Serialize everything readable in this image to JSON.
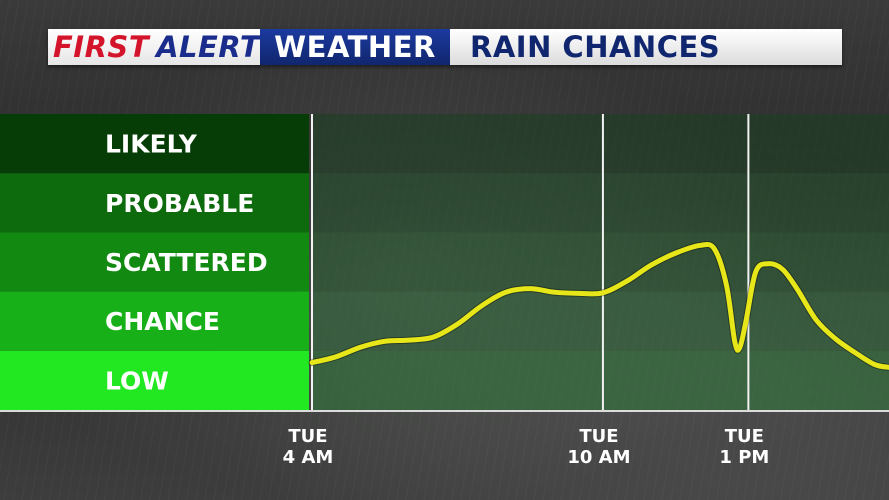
{
  "banner": {
    "brand_first": "FIRST",
    "brand_alert": "ALERT",
    "brand_weather": "WEATHER",
    "title": "RAIN CHANCES"
  },
  "colors": {
    "curve": "#e6e619",
    "brand_red": "#d4142a",
    "brand_blue": "#1a2d8c"
  },
  "chart_data": {
    "type": "line",
    "title": "RAIN CHANCES",
    "y_categories": [
      {
        "label": "LOW",
        "band_color": "#22e822",
        "plot_color": "#2f7a3a"
      },
      {
        "label": "CHANCE",
        "band_color": "#18b018",
        "plot_color": "#2f6b3a"
      },
      {
        "label": "SCATTERED",
        "band_color": "#128a12",
        "plot_color": "#275c30"
      },
      {
        "label": "PROBABLE",
        "band_color": "#0d6a0d",
        "plot_color": "#21502a"
      },
      {
        "label": "LIKELY",
        "band_color": "#063d06",
        "plot_color": "#1b4020"
      }
    ],
    "ylim": [
      0,
      5
    ],
    "xlim": [
      4,
      15.9
    ],
    "x_ticks": [
      {
        "x": 4,
        "day": "TUE",
        "time": "4 AM"
      },
      {
        "x": 10,
        "day": "TUE",
        "time": "10 AM"
      },
      {
        "x": 13,
        "day": "TUE",
        "time": "1 PM"
      }
    ],
    "grid": "vertical",
    "series": [
      {
        "points": [
          [
            4.0,
            0.8
          ],
          [
            4.5,
            0.9
          ],
          [
            5.0,
            1.06
          ],
          [
            5.5,
            1.16
          ],
          [
            6.0,
            1.18
          ],
          [
            6.5,
            1.23
          ],
          [
            7.0,
            1.45
          ],
          [
            7.5,
            1.76
          ],
          [
            8.0,
            1.99
          ],
          [
            8.5,
            2.05
          ],
          [
            9.0,
            1.99
          ],
          [
            9.5,
            1.97
          ],
          [
            10.0,
            1.98
          ],
          [
            10.5,
            2.18
          ],
          [
            11.0,
            2.45
          ],
          [
            11.5,
            2.65
          ],
          [
            12.0,
            2.78
          ],
          [
            12.3,
            2.72
          ],
          [
            12.55,
            2.1
          ],
          [
            12.72,
            1.15
          ],
          [
            12.82,
            1.05
          ],
          [
            12.95,
            1.5
          ],
          [
            13.15,
            2.33
          ],
          [
            13.4,
            2.47
          ],
          [
            13.7,
            2.38
          ],
          [
            14.0,
            2.05
          ],
          [
            14.4,
            1.52
          ],
          [
            14.8,
            1.2
          ],
          [
            15.2,
            0.97
          ],
          [
            15.6,
            0.77
          ],
          [
            15.9,
            0.72
          ]
        ]
      }
    ]
  }
}
